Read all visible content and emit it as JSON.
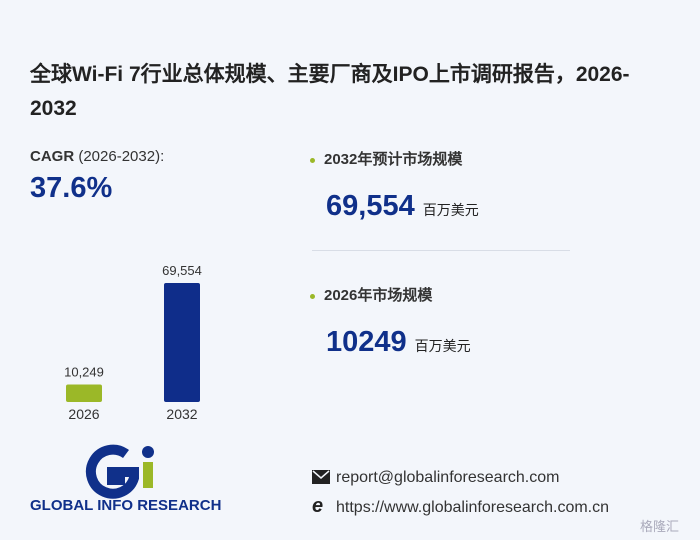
{
  "title": "全球Wi-Fi 7行业总体规模、主要厂商及IPO上市调研报告，2026-2032",
  "cagr": {
    "label": "CAGR",
    "period": "(2026-2032):",
    "value": "37.6%"
  },
  "stats": [
    {
      "label": "2032年预计市场规模",
      "value": "69,554",
      "unit": "百万美元"
    },
    {
      "label": "2026年市场规模",
      "value": "10249",
      "unit": "百万美元"
    }
  ],
  "chart_data": {
    "type": "bar",
    "categories": [
      "2026",
      "2032"
    ],
    "values": [
      10249,
      69554
    ],
    "value_labels": [
      "10,249",
      "69,554"
    ],
    "colors": [
      "#9bb828",
      "#0f2d8a"
    ]
  },
  "logo": "GLOBAL INFO RESEARCH",
  "contact": {
    "email": "report@globalinforesearch.com",
    "website": "https://www.globalinforesearch.com.cn"
  },
  "source_mark": "格隆汇"
}
